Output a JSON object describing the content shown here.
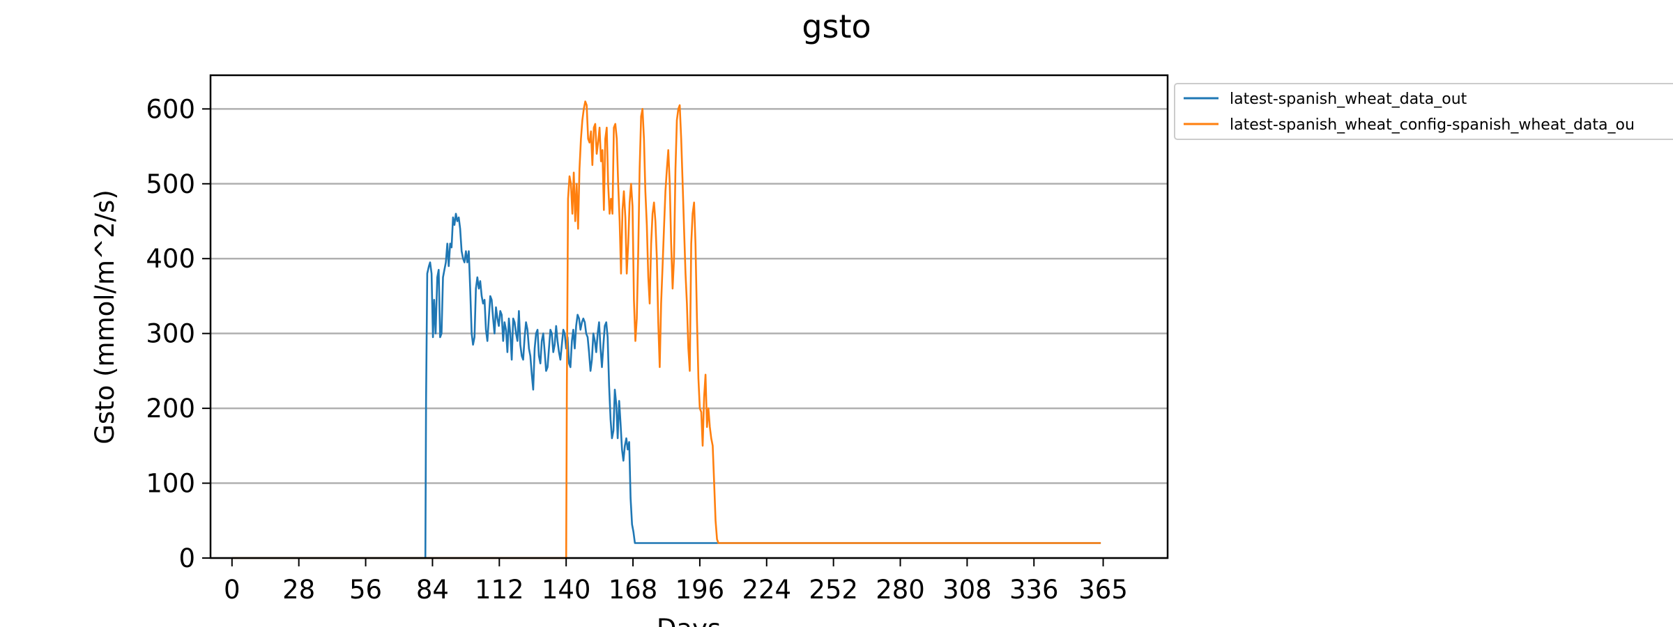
{
  "chart_data": {
    "type": "line",
    "title": "gsto",
    "xlabel": "Days",
    "ylabel": "Gsto (mmol/m^2/s)",
    "xlim": [
      -9,
      392
    ],
    "ylim": [
      0,
      645
    ],
    "xticks": [
      0,
      28,
      56,
      84,
      112,
      140,
      168,
      196,
      224,
      252,
      280,
      308,
      336,
      365
    ],
    "yticks": [
      0,
      100,
      200,
      300,
      400,
      500,
      600
    ],
    "grid": "horizontal",
    "legend_position": "outside-top-right",
    "series": [
      {
        "name": "latest-spanish_wheat_data_out",
        "color": "#1f77b4",
        "points": [
          [
            0,
            0
          ],
          [
            81,
            0
          ],
          [
            81.3,
            210
          ],
          [
            81.8,
            380
          ],
          [
            82.5,
            390
          ],
          [
            83,
            395
          ],
          [
            83.6,
            380
          ],
          [
            84.2,
            295
          ],
          [
            84.7,
            345
          ],
          [
            85.3,
            300
          ],
          [
            86,
            375
          ],
          [
            86.6,
            385
          ],
          [
            87.2,
            295
          ],
          [
            87.8,
            300
          ],
          [
            88.4,
            375
          ],
          [
            89,
            385
          ],
          [
            89.6,
            395
          ],
          [
            90.2,
            420
          ],
          [
            90.8,
            390
          ],
          [
            91.4,
            420
          ],
          [
            92,
            415
          ],
          [
            92.6,
            455
          ],
          [
            93.2,
            445
          ],
          [
            93.8,
            460
          ],
          [
            94.4,
            450
          ],
          [
            95,
            455
          ],
          [
            95.6,
            440
          ],
          [
            96.2,
            410
          ],
          [
            96.8,
            400
          ],
          [
            97.4,
            395
          ],
          [
            98,
            410
          ],
          [
            98.6,
            395
          ],
          [
            99.2,
            410
          ],
          [
            99.8,
            360
          ],
          [
            100.4,
            300
          ],
          [
            101,
            285
          ],
          [
            101.6,
            295
          ],
          [
            102.2,
            360
          ],
          [
            102.8,
            375
          ],
          [
            103.4,
            360
          ],
          [
            104,
            370
          ],
          [
            104.6,
            350
          ],
          [
            105.2,
            340
          ],
          [
            105.8,
            345
          ],
          [
            106.4,
            305
          ],
          [
            107,
            290
          ],
          [
            107.6,
            320
          ],
          [
            108.2,
            350
          ],
          [
            108.8,
            345
          ],
          [
            109.4,
            320
          ],
          [
            110,
            300
          ],
          [
            110.6,
            335
          ],
          [
            111.2,
            320
          ],
          [
            111.8,
            310
          ],
          [
            112.4,
            330
          ],
          [
            113,
            325
          ],
          [
            113.6,
            290
          ],
          [
            114.2,
            315
          ],
          [
            114.8,
            305
          ],
          [
            115.4,
            275
          ],
          [
            116,
            320
          ],
          [
            116.6,
            300
          ],
          [
            117.2,
            265
          ],
          [
            117.8,
            320
          ],
          [
            118.4,
            315
          ],
          [
            119,
            300
          ],
          [
            119.6,
            290
          ],
          [
            120.2,
            330
          ],
          [
            120.8,
            285
          ],
          [
            121.4,
            270
          ],
          [
            122,
            265
          ],
          [
            122.6,
            295
          ],
          [
            123.2,
            315
          ],
          [
            123.8,
            305
          ],
          [
            124.4,
            280
          ],
          [
            125,
            270
          ],
          [
            125.6,
            245
          ],
          [
            126.2,
            225
          ],
          [
            126.8,
            280
          ],
          [
            127.4,
            300
          ],
          [
            128,
            305
          ],
          [
            128.6,
            270
          ],
          [
            129.2,
            260
          ],
          [
            129.8,
            290
          ],
          [
            130.4,
            300
          ],
          [
            131,
            275
          ],
          [
            131.6,
            250
          ],
          [
            132.2,
            255
          ],
          [
            132.8,
            280
          ],
          [
            133.4,
            305
          ],
          [
            134,
            300
          ],
          [
            134.6,
            275
          ],
          [
            135.2,
            285
          ],
          [
            135.8,
            310
          ],
          [
            136.4,
            290
          ],
          [
            137,
            275
          ],
          [
            137.6,
            265
          ],
          [
            138.2,
            285
          ],
          [
            138.8,
            305
          ],
          [
            139.4,
            300
          ],
          [
            140,
            280
          ],
          [
            140.6,
            295
          ],
          [
            141.2,
            260
          ],
          [
            141.8,
            255
          ],
          [
            142.4,
            290
          ],
          [
            143,
            305
          ],
          [
            143.6,
            280
          ],
          [
            144.2,
            310
          ],
          [
            144.8,
            325
          ],
          [
            145.4,
            320
          ],
          [
            146,
            305
          ],
          [
            146.6,
            315
          ],
          [
            147.2,
            320
          ],
          [
            147.8,
            315
          ],
          [
            148.4,
            300
          ],
          [
            149,
            295
          ],
          [
            149.6,
            275
          ],
          [
            150.2,
            250
          ],
          [
            150.8,
            265
          ],
          [
            151.4,
            300
          ],
          [
            152,
            290
          ],
          [
            152.6,
            275
          ],
          [
            153.2,
            300
          ],
          [
            153.8,
            315
          ],
          [
            154.4,
            280
          ],
          [
            155,
            255
          ],
          [
            155.6,
            285
          ],
          [
            156.2,
            310
          ],
          [
            156.8,
            315
          ],
          [
            157.4,
            295
          ],
          [
            158,
            230
          ],
          [
            158.6,
            185
          ],
          [
            159.2,
            160
          ],
          [
            159.8,
            170
          ],
          [
            160.4,
            225
          ],
          [
            161,
            205
          ],
          [
            161.6,
            160
          ],
          [
            162.2,
            210
          ],
          [
            162.8,
            180
          ],
          [
            163.4,
            145
          ],
          [
            164,
            130
          ],
          [
            164.6,
            150
          ],
          [
            165.2,
            160
          ],
          [
            165.8,
            145
          ],
          [
            166.4,
            155
          ],
          [
            167,
            80
          ],
          [
            167.6,
            45
          ],
          [
            168.2,
            35
          ],
          [
            168.8,
            20
          ],
          [
            364,
            20
          ]
        ]
      },
      {
        "name": "latest-spanish_wheat_config-spanish_wheat_data_ou",
        "color": "#ff7f0e",
        "points": [
          [
            0,
            0
          ],
          [
            140,
            0
          ],
          [
            140.3,
            230
          ],
          [
            140.8,
            480
          ],
          [
            141.4,
            510
          ],
          [
            142,
            500
          ],
          [
            142.6,
            460
          ],
          [
            143.2,
            515
          ],
          [
            143.8,
            450
          ],
          [
            144.4,
            500
          ],
          [
            145,
            440
          ],
          [
            145.6,
            520
          ],
          [
            146.2,
            560
          ],
          [
            146.8,
            585
          ],
          [
            147.4,
            600
          ],
          [
            148,
            610
          ],
          [
            148.6,
            605
          ],
          [
            149.2,
            560
          ],
          [
            149.8,
            555
          ],
          [
            150.4,
            570
          ],
          [
            151,
            525
          ],
          [
            151.6,
            575
          ],
          [
            152.2,
            580
          ],
          [
            152.8,
            540
          ],
          [
            153.4,
            555
          ],
          [
            154,
            575
          ],
          [
            154.6,
            530
          ],
          [
            155.2,
            545
          ],
          [
            155.8,
            465
          ],
          [
            156.4,
            560
          ],
          [
            157,
            575
          ],
          [
            157.6,
            500
          ],
          [
            158.2,
            460
          ],
          [
            158.8,
            480
          ],
          [
            159.4,
            460
          ],
          [
            160,
            575
          ],
          [
            160.6,
            580
          ],
          [
            161.2,
            560
          ],
          [
            161.8,
            500
          ],
          [
            162.4,
            450
          ],
          [
            163,
            380
          ],
          [
            163.6,
            465
          ],
          [
            164.2,
            490
          ],
          [
            164.8,
            455
          ],
          [
            165.4,
            380
          ],
          [
            166,
            420
          ],
          [
            166.6,
            475
          ],
          [
            167.2,
            500
          ],
          [
            167.8,
            470
          ],
          [
            168.4,
            345
          ],
          [
            169,
            290
          ],
          [
            169.6,
            320
          ],
          [
            170.2,
            410
          ],
          [
            170.8,
            520
          ],
          [
            171.4,
            590
          ],
          [
            172,
            600
          ],
          [
            172.6,
            560
          ],
          [
            173.2,
            490
          ],
          [
            173.8,
            445
          ],
          [
            174.4,
            375
          ],
          [
            175,
            340
          ],
          [
            175.6,
            420
          ],
          [
            176.2,
            460
          ],
          [
            176.8,
            475
          ],
          [
            177.4,
            450
          ],
          [
            178,
            400
          ],
          [
            178.6,
            315
          ],
          [
            179.2,
            255
          ],
          [
            179.8,
            340
          ],
          [
            180.4,
            390
          ],
          [
            181,
            440
          ],
          [
            181.6,
            490
          ],
          [
            182.2,
            520
          ],
          [
            182.8,
            545
          ],
          [
            183.4,
            500
          ],
          [
            184,
            420
          ],
          [
            184.6,
            360
          ],
          [
            185.2,
            400
          ],
          [
            185.8,
            520
          ],
          [
            186.4,
            585
          ],
          [
            187,
            600
          ],
          [
            187.6,
            605
          ],
          [
            188.2,
            560
          ],
          [
            188.8,
            500
          ],
          [
            189.4,
            440
          ],
          [
            190,
            380
          ],
          [
            190.6,
            340
          ],
          [
            191.2,
            280
          ],
          [
            191.8,
            250
          ],
          [
            192.4,
            420
          ],
          [
            193,
            460
          ],
          [
            193.6,
            475
          ],
          [
            194.2,
            420
          ],
          [
            194.8,
            320
          ],
          [
            195.4,
            240
          ],
          [
            196,
            200
          ],
          [
            196.6,
            195
          ],
          [
            197.2,
            150
          ],
          [
            197.8,
            215
          ],
          [
            198.4,
            245
          ],
          [
            199,
            175
          ],
          [
            199.6,
            200
          ],
          [
            200.2,
            175
          ],
          [
            200.8,
            160
          ],
          [
            201.4,
            150
          ],
          [
            202,
            100
          ],
          [
            202.6,
            50
          ],
          [
            203.2,
            25
          ],
          [
            203.8,
            20
          ],
          [
            364,
            20
          ]
        ]
      }
    ]
  }
}
